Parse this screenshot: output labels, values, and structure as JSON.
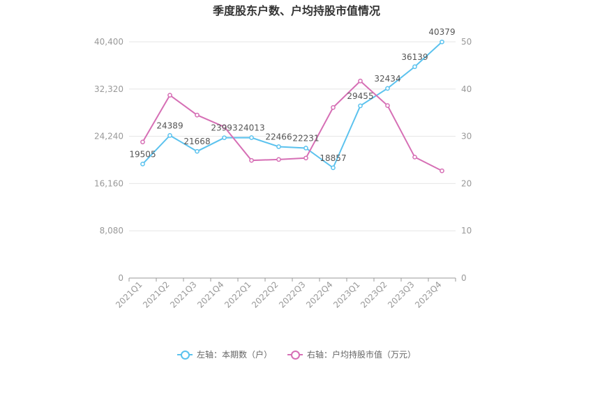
{
  "chart_data": {
    "type": "line",
    "title": "季度股东户数、户均持股市值情况",
    "categories": [
      "2021Q1",
      "2021Q2",
      "2021Q3",
      "2021Q4",
      "2022Q1",
      "2022Q2",
      "2022Q3",
      "2022Q4",
      "2023Q1",
      "2023Q2",
      "2023Q3",
      "2023Q4"
    ],
    "series": [
      {
        "name": "左轴：本期数（户）",
        "axis": "left",
        "color": "#5bc2ee",
        "values": [
          19505,
          24389,
          21668,
          23993,
          24013,
          22466,
          22231,
          18857,
          29455,
          32434,
          36139,
          40379
        ],
        "data_labels": [
          "19505",
          "24389",
          "21668",
          "23993",
          "24013",
          "22466",
          "22231",
          "18857",
          "29455",
          "32434",
          "36139",
          "40379"
        ]
      },
      {
        "name": "右轴：户均持股市值（万元）",
        "axis": "right",
        "color": "#d66fb5",
        "values": [
          28.8,
          38.7,
          34.5,
          32.0,
          24.9,
          25.1,
          25.4,
          36.1,
          41.7,
          36.5,
          25.6,
          22.7
        ]
      }
    ],
    "left_axis": {
      "ylim": [
        0,
        40400
      ],
      "ticks": [
        "0",
        "8,080",
        "16,160",
        "24,240",
        "32,320",
        "40,400"
      ]
    },
    "right_axis": {
      "ylim": [
        0,
        50
      ],
      "ticks": [
        "0",
        "10",
        "20",
        "30",
        "40",
        "50"
      ]
    },
    "grid": true,
    "legend_position": "bottom"
  }
}
